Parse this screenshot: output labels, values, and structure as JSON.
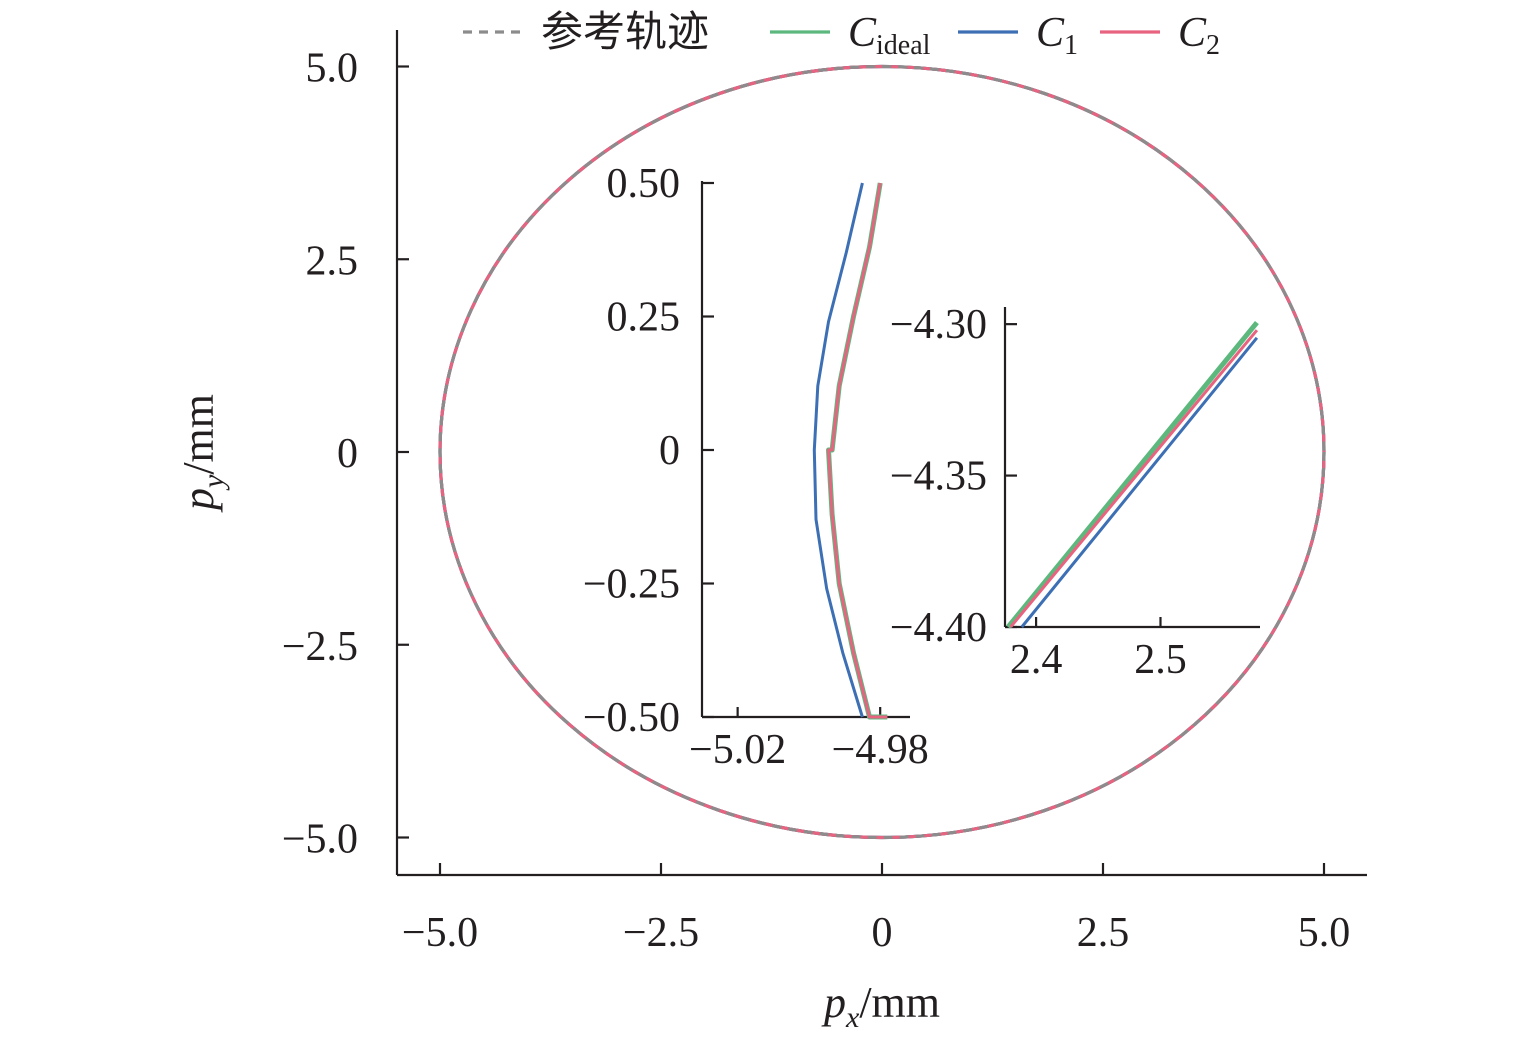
{
  "chart_data": [
    {
      "type": "line",
      "panel": "main",
      "xlabel": {
        "var": "p",
        "sub": "x",
        "unit": "/mm"
      },
      "ylabel": {
        "var": "p",
        "sub": "y",
        "unit": "/mm"
      },
      "xlim": [
        -5.25,
        5.5
      ],
      "ylim": [
        -5.5,
        5.5
      ],
      "xticks": [
        -5.0,
        -2.5,
        0,
        2.5,
        5.0
      ],
      "xtick_labels": [
        "−5.0",
        "−2.5",
        "0",
        "2.5",
        "5.0"
      ],
      "yticks": [
        5.0,
        2.5,
        0,
        -2.5,
        -5.0
      ],
      "ytick_labels": [
        "5.0",
        "2.5",
        "0",
        "−2.5",
        "−5.0"
      ],
      "legend": {
        "placement": "top",
        "entries": [
          {
            "key": "ref",
            "label": "参考轨迹",
            "sub": "",
            "color": "#8c8c8c",
            "dashed": true
          },
          {
            "key": "ideal",
            "label": "C",
            "sub": "ideal",
            "color": "#5cb87d",
            "dashed": false
          },
          {
            "key": "c1",
            "label": "C",
            "sub": "1",
            "color": "#3d6fb4",
            "dashed": false
          },
          {
            "key": "c2",
            "label": "C",
            "sub": "2",
            "color": "#e8637f",
            "dashed": false
          }
        ]
      },
      "series": [
        {
          "key": "ideal",
          "shape": "circle",
          "center": [
            0,
            0
          ],
          "radius": 5.0
        },
        {
          "key": "c1",
          "shape": "circle",
          "center": [
            0,
            0
          ],
          "radius": 5.0
        },
        {
          "key": "c2",
          "shape": "circle",
          "center": [
            0,
            0
          ],
          "radius": 5.0
        },
        {
          "key": "ref",
          "shape": "circle",
          "center": [
            0,
            0
          ],
          "radius": 5.0
        }
      ]
    },
    {
      "type": "line",
      "panel": "inset-left",
      "xlim": [
        -5.03,
        -4.975
      ],
      "ylim": [
        -0.5,
        0.5
      ],
      "xticks": [
        -5.02,
        -4.98
      ],
      "xtick_labels": [
        "−5.02",
        "−4.98"
      ],
      "yticks": [
        0.5,
        0.25,
        0,
        -0.25,
        -0.5
      ],
      "ytick_labels": [
        "0.50",
        "0.25",
        "0",
        "−0.25",
        "−0.50"
      ],
      "series": [
        {
          "key": "ideal",
          "x": [
            -4.98,
            -4.983,
            -4.9875,
            -4.9915,
            -4.9935,
            -4.9945,
            -4.9935,
            -4.9915,
            -4.9875,
            -4.983,
            -4.978
          ],
          "y": [
            0.5,
            0.38,
            0.25,
            0.12,
            0.0,
            0.0,
            -0.12,
            -0.25,
            -0.38,
            -0.5,
            -0.5
          ]
        },
        {
          "key": "c1",
          "x": [
            -4.985,
            -4.9895,
            -4.9945,
            -4.9975,
            -4.9985,
            -4.998,
            -4.995,
            -4.9905,
            -4.985
          ],
          "y": [
            0.5,
            0.37,
            0.24,
            0.12,
            0.0,
            -0.13,
            -0.26,
            -0.38,
            -0.5
          ]
        },
        {
          "key": "c2",
          "x": [
            -4.98,
            -4.983,
            -4.9875,
            -4.9915,
            -4.9935,
            -4.9945,
            -4.9935,
            -4.9915,
            -4.9875,
            -4.983,
            -4.978
          ],
          "y": [
            0.5,
            0.38,
            0.25,
            0.12,
            0.0,
            0.0,
            -0.12,
            -0.25,
            -0.38,
            -0.5,
            -0.5
          ]
        }
      ]
    },
    {
      "type": "line",
      "panel": "inset-right",
      "xlim": [
        2.375,
        2.58
      ],
      "ylim": [
        -4.4,
        -4.295
      ],
      "xticks": [
        2.4,
        2.5
      ],
      "xtick_labels": [
        "2.4",
        "2.5"
      ],
      "yticks": [
        -4.3,
        -4.35,
        -4.4
      ],
      "ytick_labels": [
        "−4.30",
        "−4.35",
        "−4.40"
      ],
      "series": [
        {
          "key": "ideal",
          "x": [
            2.3775,
            2.5775
          ],
          "y": [
            -4.4,
            -4.2995
          ]
        },
        {
          "key": "c1",
          "x": [
            2.3885,
            2.5775
          ],
          "y": [
            -4.4,
            -4.3045
          ]
        },
        {
          "key": "c2",
          "x": [
            2.3795,
            2.5775
          ],
          "y": [
            -4.4,
            -4.302
          ]
        }
      ]
    }
  ]
}
